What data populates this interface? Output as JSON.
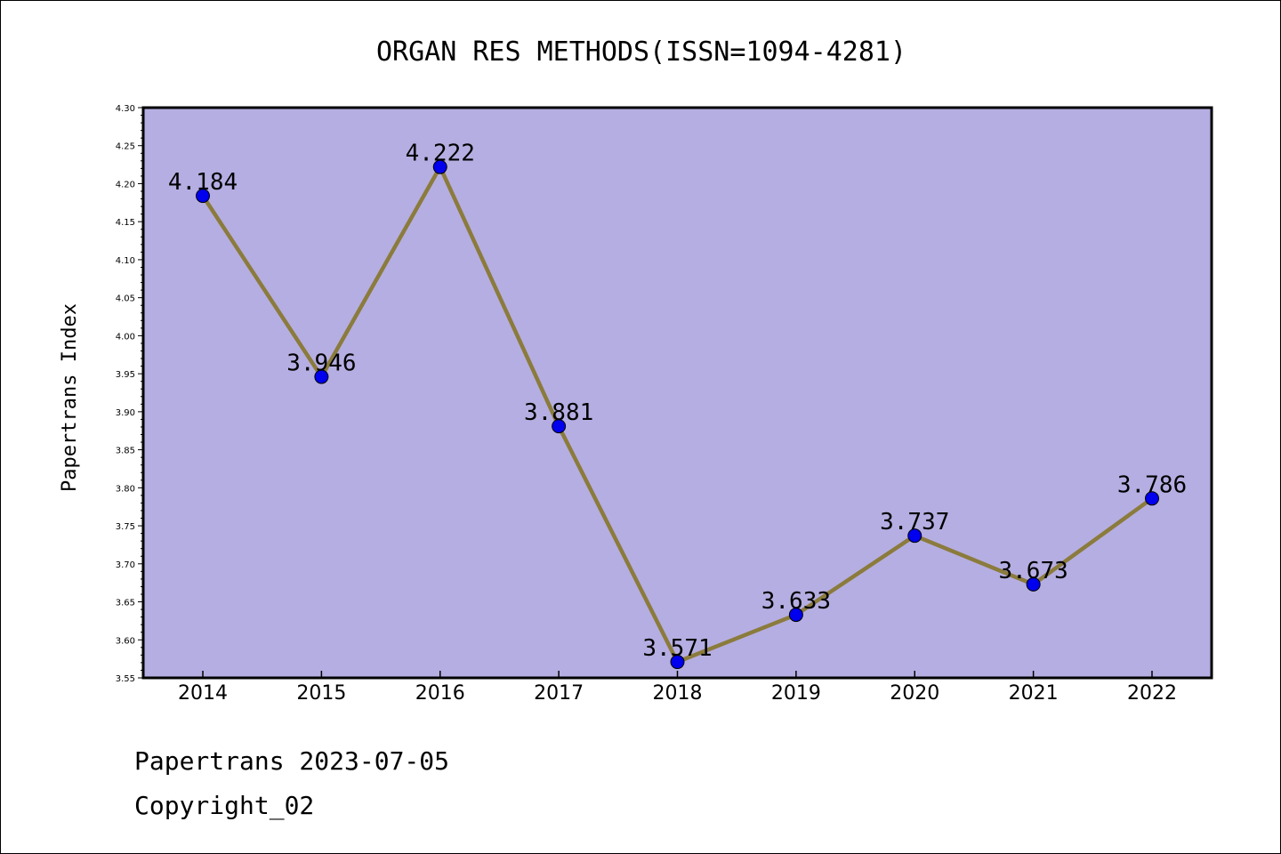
{
  "chart_data": {
    "type": "line",
    "title": "ORGAN RES METHODS(ISSN=1094-4281)",
    "ylabel": "Papertrans Index",
    "xlabel": "",
    "categories": [
      "2014",
      "2015",
      "2016",
      "2017",
      "2018",
      "2019",
      "2020",
      "2021",
      "2022"
    ],
    "values": [
      4.184,
      3.946,
      4.222,
      3.881,
      3.571,
      3.633,
      3.737,
      3.673,
      3.786
    ],
    "value_labels": [
      "4.184",
      "3.946",
      "4.222",
      "3.881",
      "3.571",
      "3.633",
      "3.737",
      "3.673",
      "3.786"
    ],
    "ylim": [
      3.55,
      4.3
    ],
    "yticks": [
      "3.55",
      "3.60",
      "3.65",
      "3.70",
      "3.75",
      "3.80",
      "3.85",
      "3.90",
      "3.95",
      "4.00",
      "4.05",
      "4.10",
      "4.15",
      "4.20",
      "4.25",
      "4.30"
    ],
    "grid": false,
    "colors": {
      "plot_background": "#b5aee2",
      "line": "#8b7b3c",
      "marker": "#0000ee"
    }
  },
  "footer": {
    "line1": "Papertrans 2023-07-05",
    "line2": "Copyright_02"
  }
}
